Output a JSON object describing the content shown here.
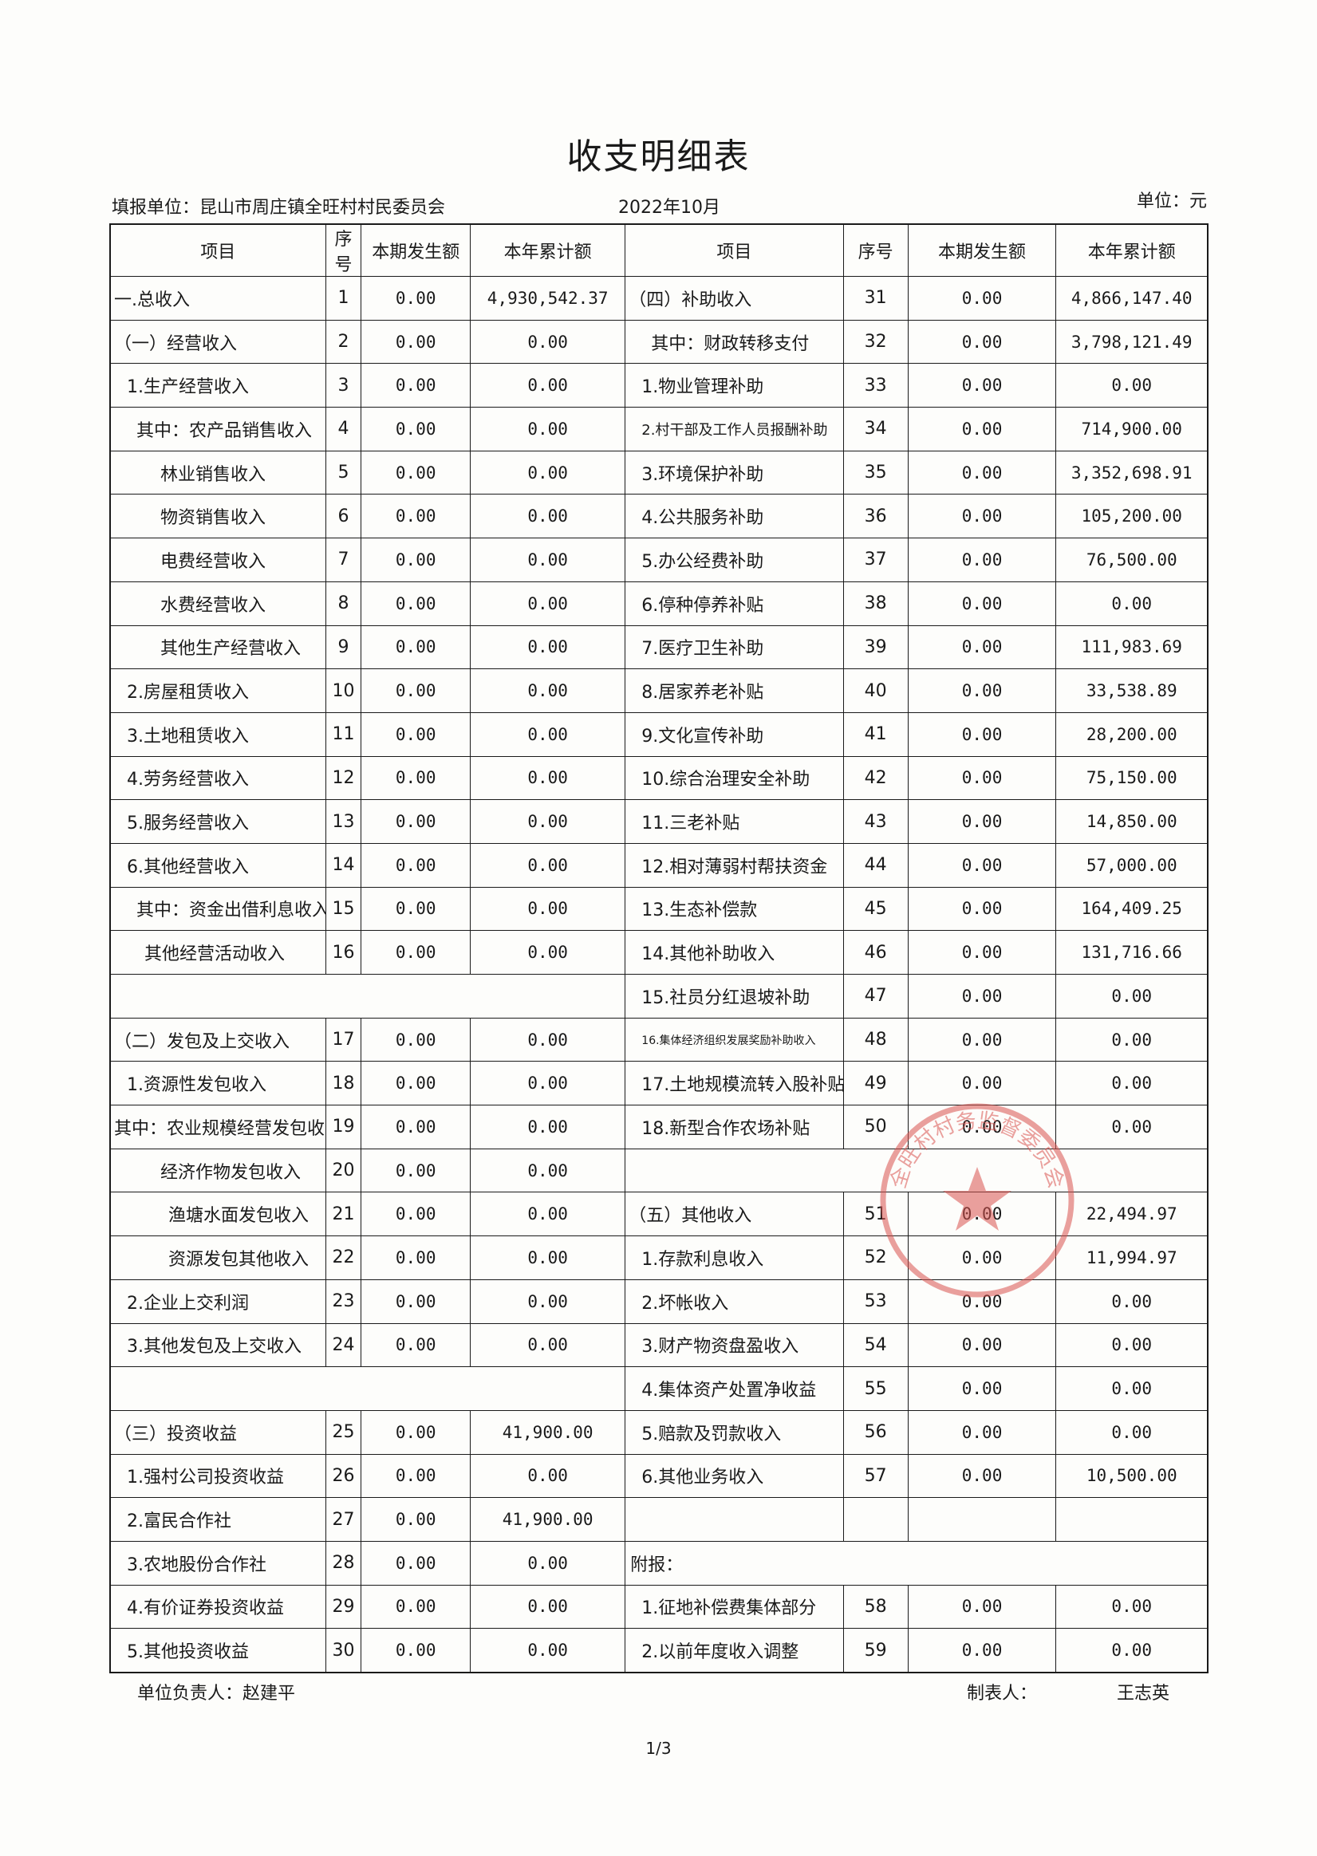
{
  "title": "收支明细表",
  "header": {
    "unit": "填报单位：昆山市周庄镇全旺村村民委员会",
    "period": "2022年10月",
    "currency": "单位：元"
  },
  "columns": [
    "项目",
    "序号",
    "本期发生额",
    "本年累计额",
    "项目",
    "序号",
    "本期发生额",
    "本年累计额"
  ],
  "rows": [
    {
      "l": {
        "item": "一.总收入",
        "no": "1",
        "cur": "0.00",
        "ytd": "4,930,542.37",
        "indent": 0
      },
      "r": {
        "item": "（四）补助收入",
        "no": "31",
        "cur": "0.00",
        "ytd": "4,866,147.40",
        "indent": 0
      }
    },
    {
      "l": {
        "item": "（一）经营收入",
        "no": "2",
        "cur": "0.00",
        "ytd": "0.00",
        "indent": 0
      },
      "r": {
        "item": "其中：财政转移支付",
        "no": "32",
        "cur": "0.00",
        "ytd": "3,798,121.49",
        "indent": 2
      }
    },
    {
      "l": {
        "item": "1.生产经营收入",
        "no": "3",
        "cur": "0.00",
        "ytd": "0.00",
        "indent": 1
      },
      "r": {
        "item": "1.物业管理补助",
        "no": "33",
        "cur": "0.00",
        "ytd": "0.00",
        "indent": 1
      }
    },
    {
      "l": {
        "item": "其中：农产品销售收入",
        "no": "4",
        "cur": "0.00",
        "ytd": "0.00",
        "indent": 2
      },
      "r": {
        "item": "2.村干部及工作人员报酬补助",
        "no": "34",
        "cur": "0.00",
        "ytd": "714,900.00",
        "indent": 1,
        "small": true
      }
    },
    {
      "l": {
        "item": "林业销售收入",
        "no": "5",
        "cur": "0.00",
        "ytd": "0.00",
        "indent": 4
      },
      "r": {
        "item": "3.环境保护补助",
        "no": "35",
        "cur": "0.00",
        "ytd": "3,352,698.91",
        "indent": 1
      }
    },
    {
      "l": {
        "item": "物资销售收入",
        "no": "6",
        "cur": "0.00",
        "ytd": "0.00",
        "indent": 4
      },
      "r": {
        "item": "4.公共服务补助",
        "no": "36",
        "cur": "0.00",
        "ytd": "105,200.00",
        "indent": 1
      }
    },
    {
      "l": {
        "item": "电费经营收入",
        "no": "7",
        "cur": "0.00",
        "ytd": "0.00",
        "indent": 4
      },
      "r": {
        "item": "5.办公经费补助",
        "no": "37",
        "cur": "0.00",
        "ytd": "76,500.00",
        "indent": 1
      }
    },
    {
      "l": {
        "item": "水费经营收入",
        "no": "8",
        "cur": "0.00",
        "ytd": "0.00",
        "indent": 4
      },
      "r": {
        "item": "6.停种停养补贴",
        "no": "38",
        "cur": "0.00",
        "ytd": "0.00",
        "indent": 1
      }
    },
    {
      "l": {
        "item": "其他生产经营收入",
        "no": "9",
        "cur": "0.00",
        "ytd": "0.00",
        "indent": 4
      },
      "r": {
        "item": "7.医疗卫生补助",
        "no": "39",
        "cur": "0.00",
        "ytd": "111,983.69",
        "indent": 1
      }
    },
    {
      "l": {
        "item": "2.房屋租赁收入",
        "no": "10",
        "cur": "0.00",
        "ytd": "0.00",
        "indent": 1
      },
      "r": {
        "item": "8.居家养老补贴",
        "no": "40",
        "cur": "0.00",
        "ytd": "33,538.89",
        "indent": 1
      }
    },
    {
      "l": {
        "item": "3.土地租赁收入",
        "no": "11",
        "cur": "0.00",
        "ytd": "0.00",
        "indent": 1
      },
      "r": {
        "item": "9.文化宣传补助",
        "no": "41",
        "cur": "0.00",
        "ytd": "28,200.00",
        "indent": 1
      }
    },
    {
      "l": {
        "item": "4.劳务经营收入",
        "no": "12",
        "cur": "0.00",
        "ytd": "0.00",
        "indent": 1
      },
      "r": {
        "item": "10.综合治理安全补助",
        "no": "42",
        "cur": "0.00",
        "ytd": "75,150.00",
        "indent": 1
      }
    },
    {
      "l": {
        "item": "5.服务经营收入",
        "no": "13",
        "cur": "0.00",
        "ytd": "0.00",
        "indent": 1
      },
      "r": {
        "item": "11.三老补贴",
        "no": "43",
        "cur": "0.00",
        "ytd": "14,850.00",
        "indent": 1
      }
    },
    {
      "l": {
        "item": "6.其他经营收入",
        "no": "14",
        "cur": "0.00",
        "ytd": "0.00",
        "indent": 1
      },
      "r": {
        "item": "12.相对薄弱村帮扶资金",
        "no": "44",
        "cur": "0.00",
        "ytd": "57,000.00",
        "indent": 1
      }
    },
    {
      "l": {
        "item": "其中：资金出借利息收入",
        "no": "15",
        "cur": "0.00",
        "ytd": "0.00",
        "indent": 2
      },
      "r": {
        "item": "13.生态补偿款",
        "no": "45",
        "cur": "0.00",
        "ytd": "164,409.25",
        "indent": 1
      }
    },
    {
      "l": {
        "item": "其他经营活动收入",
        "no": "16",
        "cur": "0.00",
        "ytd": "0.00",
        "indent": 3
      },
      "r": {
        "item": "14.其他补助收入",
        "no": "46",
        "cur": "0.00",
        "ytd": "131,716.66",
        "indent": 1
      }
    },
    {
      "l": null,
      "r": {
        "item": "15.社员分红退坡补助",
        "no": "47",
        "cur": "0.00",
        "ytd": "0.00",
        "indent": 1
      }
    },
    {
      "l": {
        "item": "（二）发包及上交收入",
        "no": "17",
        "cur": "0.00",
        "ytd": "0.00",
        "indent": 0
      },
      "r": {
        "item": "16.集体经济组织发展奖励补助收入",
        "no": "48",
        "cur": "0.00",
        "ytd": "0.00",
        "indent": 1,
        "small": true
      }
    },
    {
      "l": {
        "item": "1.资源性发包收入",
        "no": "18",
        "cur": "0.00",
        "ytd": "0.00",
        "indent": 1
      },
      "r": {
        "item": "17.土地规模流转入股补贴",
        "no": "49",
        "cur": "0.00",
        "ytd": "0.00",
        "indent": 1
      }
    },
    {
      "l": {
        "item": "其中：农业规模经营发包收入",
        "no": "19",
        "cur": "0.00",
        "ytd": "0.00",
        "indent": 0
      },
      "r": {
        "item": "18.新型合作农场补贴",
        "no": "50",
        "cur": "0.00",
        "ytd": "0.00",
        "indent": 1
      }
    },
    {
      "l": {
        "item": "经济作物发包收入",
        "no": "20",
        "cur": "0.00",
        "ytd": "0.00",
        "indent": 4
      },
      "r": null
    },
    {
      "l": {
        "item": "渔塘水面发包收入",
        "no": "21",
        "cur": "0.00",
        "ytd": "0.00",
        "indent": 5
      },
      "r": {
        "item": "（五）其他收入",
        "no": "51",
        "cur": "0.00",
        "ytd": "22,494.97",
        "indent": 0
      }
    },
    {
      "l": {
        "item": "资源发包其他收入",
        "no": "22",
        "cur": "0.00",
        "ytd": "0.00",
        "indent": 5
      },
      "r": {
        "item": "1.存款利息收入",
        "no": "52",
        "cur": "0.00",
        "ytd": "11,994.97",
        "indent": 1
      }
    },
    {
      "l": {
        "item": "2.企业上交利润",
        "no": "23",
        "cur": "0.00",
        "ytd": "0.00",
        "indent": 1
      },
      "r": {
        "item": "2.坏帐收入",
        "no": "53",
        "cur": "0.00",
        "ytd": "0.00",
        "indent": 1
      }
    },
    {
      "l": {
        "item": "3.其他发包及上交收入",
        "no": "24",
        "cur": "0.00",
        "ytd": "0.00",
        "indent": 1
      },
      "r": {
        "item": "3.财产物资盘盈收入",
        "no": "54",
        "cur": "0.00",
        "ytd": "0.00",
        "indent": 1
      }
    },
    {
      "l": null,
      "r": {
        "item": "4.集体资产处置净收益",
        "no": "55",
        "cur": "0.00",
        "ytd": "0.00",
        "indent": 1
      }
    },
    {
      "l": {
        "item": "（三）投资收益",
        "no": "25",
        "cur": "0.00",
        "ytd": "41,900.00",
        "indent": 0
      },
      "r": {
        "item": "5.赔款及罚款收入",
        "no": "56",
        "cur": "0.00",
        "ytd": "0.00",
        "indent": 1
      }
    },
    {
      "l": {
        "item": "1.强村公司投资收益",
        "no": "26",
        "cur": "0.00",
        "ytd": "0.00",
        "indent": 1
      },
      "r": {
        "item": "6.其他业务收入",
        "no": "57",
        "cur": "0.00",
        "ytd": "10,500.00",
        "indent": 1
      }
    },
    {
      "l": {
        "item": "2.富民合作社",
        "no": "27",
        "cur": "0.00",
        "ytd": "41,900.00",
        "indent": 1
      },
      "r": {
        "item": "",
        "no": "",
        "cur": "",
        "ytd": "",
        "indent": 0
      }
    },
    {
      "l": {
        "item": "3.农地股份合作社",
        "no": "28",
        "cur": "0.00",
        "ytd": "0.00",
        "indent": 1
      },
      "r": {
        "item": "附报：",
        "no": "",
        "cur": "",
        "ytd": "",
        "indent": 0,
        "span": true
      }
    },
    {
      "l": {
        "item": "4.有价证券投资收益",
        "no": "29",
        "cur": "0.00",
        "ytd": "0.00",
        "indent": 1
      },
      "r": {
        "item": "1.征地补偿费集体部分",
        "no": "58",
        "cur": "0.00",
        "ytd": "0.00",
        "indent": 1
      }
    },
    {
      "l": {
        "item": "5.其他投资收益",
        "no": "30",
        "cur": "0.00",
        "ytd": "0.00",
        "indent": 1
      },
      "r": {
        "item": "2.以前年度收入调整",
        "no": "59",
        "cur": "0.00",
        "ytd": "0.00",
        "indent": 1
      }
    }
  ],
  "footer": {
    "head_label": "单位负责人：",
    "head_name": "赵建平",
    "maker_label": "制表人：",
    "maker_name": "王志英",
    "page": "1/3"
  },
  "seal": {
    "text": "全旺村村务监督委员会",
    "color": "#d9534f"
  }
}
